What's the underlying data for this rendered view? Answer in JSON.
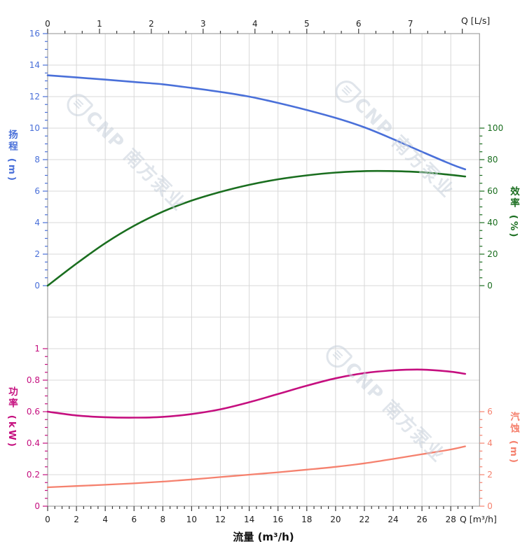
{
  "watermark": {
    "logo_glyph": "≡",
    "brand_full": "CNP 南方泵业"
  },
  "chart_data": {
    "type": "line",
    "title": "",
    "grid": true,
    "x_axis_bottom": {
      "title": "流量 (m³/h)",
      "unit_label": "Q [m³/h]",
      "min": 0,
      "max": 30,
      "major_step": 2,
      "minor_step": 0.5,
      "tick_labels": [
        0,
        2,
        4,
        6,
        8,
        10,
        12,
        14,
        16,
        18,
        20,
        22,
        24,
        26,
        28
      ],
      "color": "#1f1f1f"
    },
    "x_axis_top": {
      "unit_label": "Q [L/s]",
      "min": 0,
      "max": 8.333,
      "major_step": 1,
      "minor_step": 0.3333,
      "tick_labels": [
        0,
        1,
        2,
        3,
        4,
        5,
        6,
        7
      ],
      "ls_to_m3h": 3.6,
      "color": "#1f1f1f"
    },
    "y_axes": [
      {
        "id": "head",
        "title": "扬程 (m)",
        "side": "left",
        "min": 0,
        "max": 16,
        "major_step": 2,
        "minor_step": 0.5,
        "tick_labels": [
          0,
          2,
          4,
          6,
          8,
          10,
          12,
          14,
          16
        ],
        "color": "#4a70d9"
      },
      {
        "id": "eff",
        "title": "效率 (%)",
        "side": "right",
        "min": 0,
        "max": 100,
        "major_step": 20,
        "minor_step": 5,
        "tick_labels": [
          0,
          20,
          40,
          60,
          80,
          100
        ],
        "color": "#1a6e1f"
      },
      {
        "id": "power",
        "title": "功率 (kW)",
        "side": "left",
        "min": 0,
        "max": 1,
        "major_step": 0.2,
        "minor_step": 0.05,
        "tick_labels": [
          0,
          0.2,
          0.4,
          0.6,
          0.8,
          1
        ],
        "color": "#c50f7f"
      },
      {
        "id": "npsh",
        "title": "汽蚀 (m)",
        "side": "right",
        "min": 0,
        "max": 6,
        "major_step": 2,
        "minor_step": 0.5,
        "tick_labels": [
          0,
          2,
          4,
          6
        ],
        "color": "#f5816e"
      }
    ],
    "series": [
      {
        "name": "扬程",
        "id": "head_curve",
        "axis": "head",
        "color": "#4a70d9",
        "width": 2.6,
        "points": [
          [
            0,
            13.35
          ],
          [
            2,
            13.22
          ],
          [
            4,
            13.08
          ],
          [
            6,
            12.93
          ],
          [
            8,
            12.78
          ],
          [
            10,
            12.55
          ],
          [
            12,
            12.3
          ],
          [
            14,
            12.0
          ],
          [
            16,
            11.6
          ],
          [
            18,
            11.15
          ],
          [
            20,
            10.65
          ],
          [
            22,
            10.05
          ],
          [
            24,
            9.3
          ],
          [
            26,
            8.5
          ],
          [
            28,
            7.72
          ],
          [
            29,
            7.38
          ]
        ]
      },
      {
        "name": "效率",
        "id": "efficiency_curve",
        "axis": "eff",
        "color": "#1a6e1f",
        "width": 2.6,
        "points": [
          [
            0,
            0
          ],
          [
            2,
            14
          ],
          [
            4,
            27
          ],
          [
            6,
            38
          ],
          [
            8,
            47
          ],
          [
            10,
            54
          ],
          [
            12,
            59.5
          ],
          [
            14,
            64
          ],
          [
            16,
            67.5
          ],
          [
            18,
            70
          ],
          [
            20,
            71.8
          ],
          [
            22,
            72.7
          ],
          [
            24,
            72.7
          ],
          [
            26,
            72
          ],
          [
            28,
            70.3
          ],
          [
            29,
            69.3
          ]
        ]
      },
      {
        "name": "功率",
        "id": "power_curve",
        "axis": "power",
        "color": "#c50f7f",
        "width": 2.6,
        "points": [
          [
            0,
            0.6
          ],
          [
            2,
            0.576
          ],
          [
            4,
            0.565
          ],
          [
            6,
            0.562
          ],
          [
            8,
            0.567
          ],
          [
            10,
            0.585
          ],
          [
            12,
            0.615
          ],
          [
            14,
            0.66
          ],
          [
            16,
            0.712
          ],
          [
            18,
            0.765
          ],
          [
            20,
            0.812
          ],
          [
            22,
            0.845
          ],
          [
            24,
            0.862
          ],
          [
            26,
            0.867
          ],
          [
            28,
            0.854
          ],
          [
            29,
            0.84
          ]
        ]
      },
      {
        "name": "汽蚀",
        "id": "npsh_curve",
        "axis": "npsh",
        "color": "#f5816e",
        "width": 2.3,
        "points": [
          [
            0,
            1.2
          ],
          [
            2,
            1.28
          ],
          [
            4,
            1.36
          ],
          [
            6,
            1.45
          ],
          [
            8,
            1.56
          ],
          [
            10,
            1.7
          ],
          [
            12,
            1.85
          ],
          [
            14,
            2.0
          ],
          [
            16,
            2.15
          ],
          [
            18,
            2.32
          ],
          [
            20,
            2.5
          ],
          [
            22,
            2.72
          ],
          [
            24,
            3.0
          ],
          [
            26,
            3.3
          ],
          [
            28,
            3.6
          ],
          [
            29,
            3.8
          ]
        ]
      }
    ],
    "style": {
      "grid_color": "#d8d8d8",
      "border_color": "#a3a3a3",
      "background": "#ffffff"
    }
  }
}
